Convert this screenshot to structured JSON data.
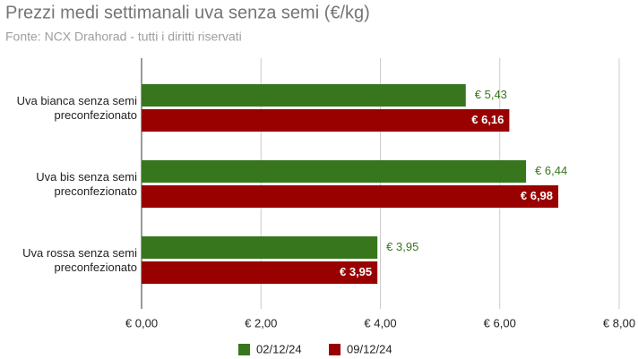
{
  "chart_data": {
    "type": "hbar",
    "title": "Prezzi medi settimanali uva senza semi (€/kg)",
    "subtitle": "Fonte: NCX Drahorad - tutti i diritti riservati",
    "categories": [
      "Uva bianca senza semi preconfezionato",
      "Uva bis senza semi preconfezionato",
      "Uva rossa senza semi preconfezionato"
    ],
    "series": [
      {
        "name": "02/12/24",
        "color": "#38761d",
        "values": [
          5.43,
          6.44,
          3.95
        ],
        "value_labels": [
          "€ 5,43",
          "€ 6,44",
          "€ 3,95"
        ]
      },
      {
        "name": "09/12/24",
        "color": "#990000",
        "values": [
          6.16,
          6.98,
          3.95
        ],
        "value_labels": [
          "€ 6,16",
          "€ 6,98",
          "€ 3,95"
        ]
      }
    ],
    "xlim": [
      0,
      8
    ],
    "xticks": [
      {
        "value": 0,
        "label": "€ 0,00"
      },
      {
        "value": 2,
        "label": "€ 2,00"
      },
      {
        "value": 4,
        "label": "€ 4,00"
      },
      {
        "value": 6,
        "label": "€ 6,00"
      },
      {
        "value": 8,
        "label": "€ 8,00"
      }
    ],
    "grid": true
  }
}
